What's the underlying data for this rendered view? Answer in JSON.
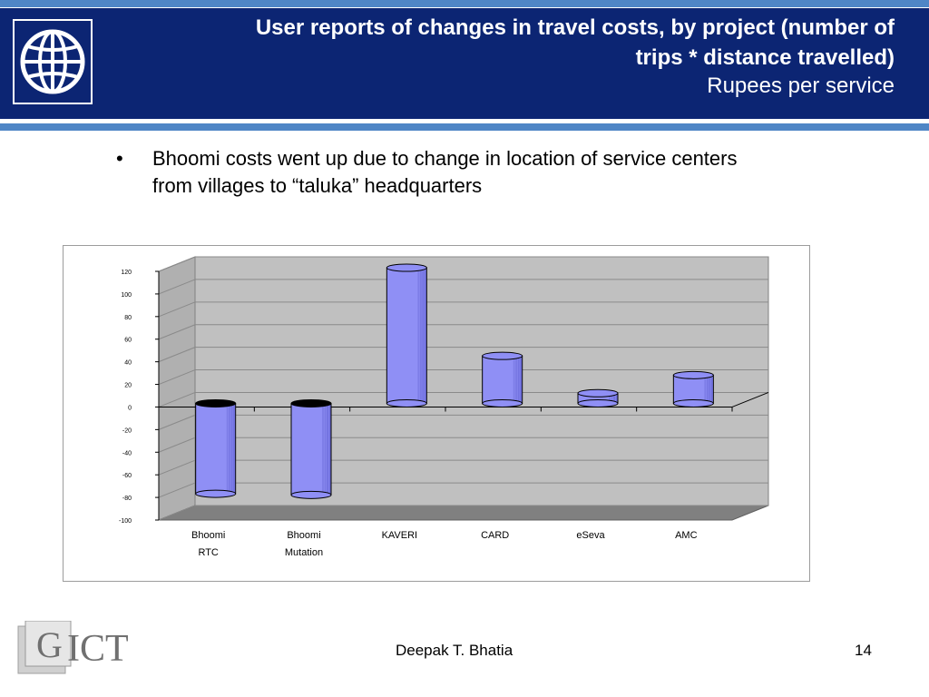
{
  "slide": {
    "title_bold": "User reports of changes in travel costs, by project (number of trips  * distance travelled)",
    "title_line1": "User reports of changes in travel costs, by project (number of",
    "title_line2": "trips  * distance travelled)",
    "subtitle": "Rupees per service",
    "bullet_symbol": "•",
    "bullet_line1": "Bhoomi costs went up due to change in location of service centers",
    "bullet_line2": "from villages to “taluka” headquarters",
    "footer_author": "Deepak T. Bhatia",
    "page_number": "14",
    "logo_left_icon": "globe-icon",
    "logo_bottom_text": "GICT"
  },
  "colors": {
    "header_bg": "#0c2573",
    "stripe": "#4f86c6",
    "plot_bg": "#c0c0c0",
    "bar_fill": "#8f8ff5",
    "bar_dark": "#5f5fd0"
  },
  "chart_data": {
    "type": "bar",
    "categories": [
      [
        "Bhoomi",
        "RTC"
      ],
      [
        "Bhoomi",
        "Mutation"
      ],
      [
        "KAVERI"
      ],
      [
        "CARD"
      ],
      [
        "eSeva"
      ],
      [
        "AMC"
      ]
    ],
    "values": [
      -80,
      -81,
      120,
      42,
      9,
      25
    ],
    "ylim": [
      -100,
      120
    ],
    "yticks": [
      120,
      100,
      80,
      60,
      40,
      20,
      0,
      -20,
      -40,
      -60,
      -80,
      -100
    ],
    "title": "",
    "xlabel": "",
    "ylabel": "",
    "grid": true,
    "style": "3d-cylinder"
  }
}
